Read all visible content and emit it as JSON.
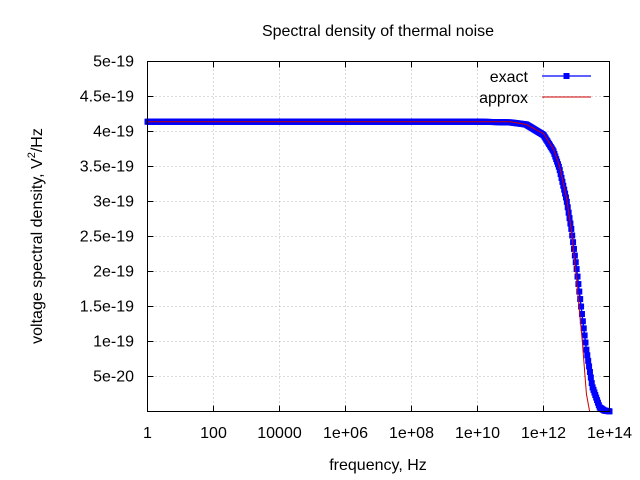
{
  "chart_data": {
    "type": "line",
    "title": "Spectral density of thermal noise",
    "xlabel": "frequency, Hz",
    "ylabel_main": "voltage spectral density, V",
    "ylabel_sup": "2",
    "ylabel_tail": "/Hz",
    "xscale": "log10",
    "xlim": [
      1,
      100000000000000.0
    ],
    "ylim": [
      0,
      5e-19
    ],
    "grid": true,
    "legend_position": "top-right",
    "xticks": [
      {
        "value": 1,
        "label": "1"
      },
      {
        "value": 100,
        "label": "100"
      },
      {
        "value": 10000,
        "label": "10000"
      },
      {
        "value": 1000000,
        "label": "1e+06"
      },
      {
        "value": 100000000,
        "label": "1e+08"
      },
      {
        "value": 10000000000,
        "label": "1e+10"
      },
      {
        "value": 1000000000000,
        "label": "1e+12"
      },
      {
        "value": 100000000000000,
        "label": "1e+14"
      }
    ],
    "yticks": [
      {
        "value": 5e-20,
        "label": "5e-20"
      },
      {
        "value": 1e-19,
        "label": "1e-19"
      },
      {
        "value": 1.5e-19,
        "label": "1.5e-19"
      },
      {
        "value": 2e-19,
        "label": "2e-19"
      },
      {
        "value": 2.5e-19,
        "label": "2.5e-19"
      },
      {
        "value": 3e-19,
        "label": "3e-19"
      },
      {
        "value": 3.5e-19,
        "label": "3.5e-19"
      },
      {
        "value": 4e-19,
        "label": "4e-19"
      },
      {
        "value": 4.5e-19,
        "label": "4.5e-19"
      },
      {
        "value": 5e-19,
        "label": "5e-19"
      }
    ],
    "series": [
      {
        "name": "exact",
        "color": "#0000ff",
        "style": "linespoints",
        "marker": "square",
        "x": [
          1,
          100.0,
          10000.0,
          1000000.0,
          100000000.0,
          10000000000.0,
          100000000000.0,
          300000000000.0,
          1000000000000.0,
          2000000000000.0,
          3000000000000.0,
          5000000000000.0,
          7000000000000.0,
          10000000000000.0,
          15000000000000.0,
          20000000000000.0,
          30000000000000.0,
          50000000000000.0,
          70000000000000.0,
          100000000000000.0
        ],
        "y": [
          4.14e-19,
          4.14e-19,
          4.14e-19,
          4.14e-19,
          4.14e-19,
          4.14e-19,
          4.13e-19,
          4.1e-19,
          3.95e-19,
          3.72e-19,
          3.48e-19,
          3.02e-19,
          2.6e-19,
          2.05e-19,
          1.35e-19,
          8.8e-20,
          3.6e-20,
          6e-21,
          1.3e-21,
          2e-22
        ]
      },
      {
        "name": "approx",
        "color": "#cc0000",
        "style": "line",
        "x": [
          1,
          100.0,
          10000.0,
          1000000.0,
          100000000.0,
          10000000000.0,
          100000000000.0,
          300000000000.0,
          1000000000000.0,
          2000000000000.0,
          3000000000000.0,
          5000000000000.0,
          7000000000000.0,
          10000000000000.0,
          15000000000000.0,
          20000000000000.0,
          25000000000000.0
        ],
        "y": [
          4.14e-19,
          4.14e-19,
          4.14e-19,
          4.14e-19,
          4.14e-19,
          4.14e-19,
          4.14e-19,
          4.1e-19,
          3.97e-19,
          3.75e-19,
          3.52e-19,
          3.05e-19,
          2.58e-19,
          1.9e-19,
          1e-19,
          2.5e-20,
          0
        ]
      }
    ]
  }
}
